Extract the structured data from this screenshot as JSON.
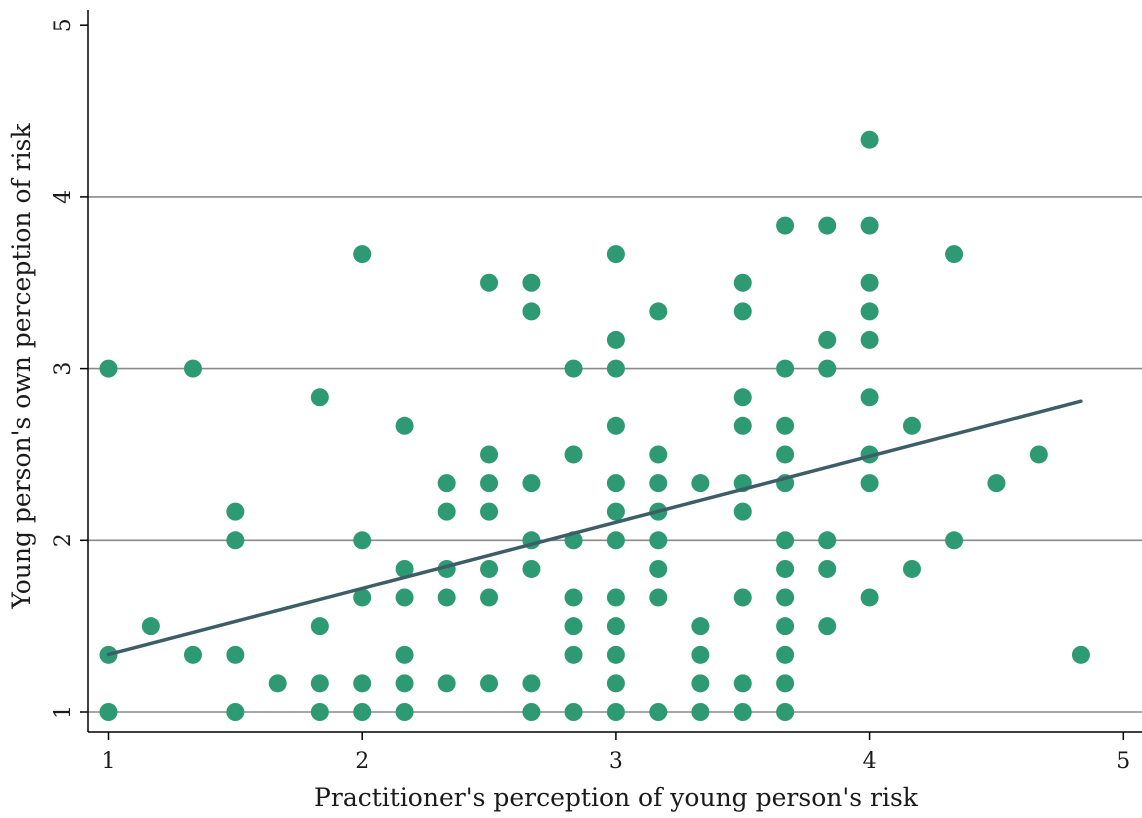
{
  "chart_data": {
    "type": "scatter",
    "xlabel": "Practitioner's perception of young person's risk",
    "ylabel": "Young person's own perception of risk",
    "xlim": [
      0.93,
      5.08
    ],
    "ylim": [
      0.88,
      5.1
    ],
    "xticks": [
      "1",
      "2",
      "3",
      "4",
      "5"
    ],
    "yticks": [
      "1",
      "2",
      "3",
      "4",
      "5"
    ],
    "gridlines_y": [
      1,
      2,
      3,
      4
    ],
    "grid": "horizontal",
    "point_color": "#2e9a73",
    "line_color": "#3d5e66",
    "points": [
      [
        1,
        1
      ],
      [
        1,
        1.333
      ],
      [
        1,
        3
      ],
      [
        1.167,
        1.5
      ],
      [
        1.333,
        1.333
      ],
      [
        1.333,
        3
      ],
      [
        1.5,
        1
      ],
      [
        1.5,
        1.333
      ],
      [
        1.5,
        2
      ],
      [
        1.5,
        2.167
      ],
      [
        1.667,
        1.167
      ],
      [
        1.833,
        1
      ],
      [
        1.833,
        1.167
      ],
      [
        1.833,
        1.5
      ],
      [
        1.833,
        2.833
      ],
      [
        2,
        1
      ],
      [
        2,
        1.167
      ],
      [
        2,
        1.667
      ],
      [
        2,
        2
      ],
      [
        2,
        3.667
      ],
      [
        2.167,
        1
      ],
      [
        2.167,
        1.167
      ],
      [
        2.167,
        1.333
      ],
      [
        2.167,
        1.667
      ],
      [
        2.167,
        1.833
      ],
      [
        2.167,
        2.667
      ],
      [
        2.333,
        1.167
      ],
      [
        2.333,
        1.667
      ],
      [
        2.333,
        1.833
      ],
      [
        2.333,
        2.167
      ],
      [
        2.333,
        2.333
      ],
      [
        2.5,
        1.167
      ],
      [
        2.5,
        1.667
      ],
      [
        2.5,
        1.833
      ],
      [
        2.5,
        2.167
      ],
      [
        2.5,
        2.333
      ],
      [
        2.5,
        2.5
      ],
      [
        2.5,
        3.5
      ],
      [
        2.667,
        1
      ],
      [
        2.667,
        1.167
      ],
      [
        2.667,
        1.833
      ],
      [
        2.667,
        2
      ],
      [
        2.667,
        2.333
      ],
      [
        2.667,
        3.333
      ],
      [
        2.667,
        3.5
      ],
      [
        2.833,
        1
      ],
      [
        2.833,
        1.333
      ],
      [
        2.833,
        1.5
      ],
      [
        2.833,
        1.667
      ],
      [
        2.833,
        2
      ],
      [
        2.833,
        2.5
      ],
      [
        2.833,
        3
      ],
      [
        3,
        1
      ],
      [
        3,
        1.167
      ],
      [
        3,
        1.333
      ],
      [
        3,
        1.5
      ],
      [
        3,
        1.667
      ],
      [
        3,
        2
      ],
      [
        3,
        2.167
      ],
      [
        3,
        2.333
      ],
      [
        3,
        2.667
      ],
      [
        3,
        3
      ],
      [
        3,
        3.167
      ],
      [
        3,
        3.667
      ],
      [
        3.167,
        1
      ],
      [
        3.167,
        1.667
      ],
      [
        3.167,
        1.833
      ],
      [
        3.167,
        2
      ],
      [
        3.167,
        2.167
      ],
      [
        3.167,
        2.333
      ],
      [
        3.167,
        2.5
      ],
      [
        3.167,
        3.333
      ],
      [
        3.333,
        1
      ],
      [
        3.333,
        1.167
      ],
      [
        3.333,
        1.333
      ],
      [
        3.333,
        1.5
      ],
      [
        3.333,
        2.333
      ],
      [
        3.5,
        1
      ],
      [
        3.5,
        1.167
      ],
      [
        3.5,
        1.667
      ],
      [
        3.5,
        2.167
      ],
      [
        3.5,
        2.333
      ],
      [
        3.5,
        2.667
      ],
      [
        3.5,
        2.833
      ],
      [
        3.5,
        3.333
      ],
      [
        3.5,
        3.5
      ],
      [
        3.667,
        1
      ],
      [
        3.667,
        1.167
      ],
      [
        3.667,
        1.333
      ],
      [
        3.667,
        1.5
      ],
      [
        3.667,
        1.667
      ],
      [
        3.667,
        1.833
      ],
      [
        3.667,
        2
      ],
      [
        3.667,
        2.333
      ],
      [
        3.667,
        2.5
      ],
      [
        3.667,
        2.667
      ],
      [
        3.667,
        3
      ],
      [
        3.667,
        3.833
      ],
      [
        3.833,
        1.5
      ],
      [
        3.833,
        1.833
      ],
      [
        3.833,
        2
      ],
      [
        3.833,
        3
      ],
      [
        3.833,
        3.167
      ],
      [
        3.833,
        3.833
      ],
      [
        4,
        1.667
      ],
      [
        4,
        2.333
      ],
      [
        4,
        2.5
      ],
      [
        4,
        2.833
      ],
      [
        4,
        3.167
      ],
      [
        4,
        3.333
      ],
      [
        4,
        3.5
      ],
      [
        4,
        3.833
      ],
      [
        4,
        4.333
      ],
      [
        4.167,
        1.833
      ],
      [
        4.167,
        2.667
      ],
      [
        4.333,
        2
      ],
      [
        4.333,
        3.667
      ],
      [
        4.5,
        2.333
      ],
      [
        4.667,
        2.5
      ],
      [
        4.833,
        1.333
      ]
    ],
    "fit_line": {
      "x": [
        1,
        4.833
      ],
      "y": [
        1.335,
        2.81
      ]
    }
  }
}
